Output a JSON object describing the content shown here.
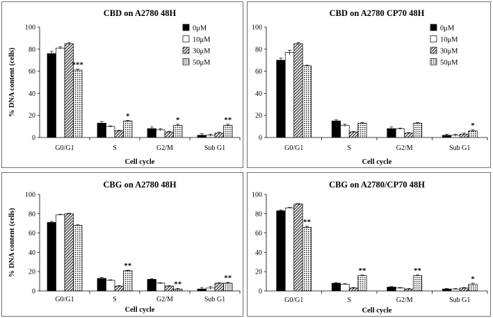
{
  "series_names": [
    "0μM",
    "10μM",
    "30μM",
    "50μM"
  ],
  "chart_data": [
    {
      "type": "bar",
      "title": "CBD on A2780 48H",
      "xlabel": "Cell cycle",
      "ylabel": "% DNA content (cells)",
      "ylim": [
        0,
        100
      ],
      "yticks": [
        0,
        20,
        40,
        60,
        80,
        100
      ],
      "categories": [
        "G0/G1",
        "S",
        "G2/M",
        "Sub G1"
      ],
      "series": [
        {
          "name": "0μM",
          "values": [
            76,
            13,
            8,
            2
          ],
          "errors": [
            2,
            1.5,
            1.5,
            1.5
          ]
        },
        {
          "name": "10μM",
          "values": [
            81,
            10,
            7,
            2
          ],
          "errors": [
            1,
            0.5,
            1,
            1
          ]
        },
        {
          "name": "30μM",
          "values": [
            85,
            6,
            5,
            4
          ],
          "errors": [
            1,
            0.5,
            0.5,
            1
          ]
        },
        {
          "name": "50μM",
          "values": [
            61,
            15,
            11,
            11
          ],
          "errors": [
            1,
            0.5,
            1,
            1
          ]
        }
      ],
      "annotations": [
        "***",
        "*",
        "*",
        "**"
      ],
      "legend": "top-right",
      "grid": false
    },
    {
      "type": "bar",
      "title": "CBD on A2780 CP70 48H",
      "xlabel": "Cell cycle",
      "ylabel": "",
      "ylim": [
        0,
        100
      ],
      "yticks": [
        0,
        20,
        40,
        60,
        80,
        100
      ],
      "categories": [
        "G0/G1",
        "S",
        "G2/M",
        "Sub G1"
      ],
      "series": [
        {
          "name": "0μM",
          "values": [
            70,
            15,
            8,
            2
          ],
          "errors": [
            2,
            1,
            1.5,
            1
          ]
        },
        {
          "name": "10μM",
          "values": [
            77,
            11,
            8,
            2
          ],
          "errors": [
            2,
            1,
            0.5,
            1
          ]
        },
        {
          "name": "30μM",
          "values": [
            85,
            5,
            4,
            3
          ],
          "errors": [
            1,
            0.5,
            0.5,
            1
          ]
        },
        {
          "name": "50μM",
          "values": [
            65,
            13,
            13,
            6
          ],
          "errors": [
            0.5,
            0.5,
            0.5,
            1
          ]
        }
      ],
      "annotations": [
        "",
        "",
        "",
        "*"
      ],
      "legend": "top-right",
      "grid": false
    },
    {
      "type": "bar",
      "title": "CBG on A2780 48H",
      "xlabel": "Cell cycle",
      "ylabel": "% DNA content (cells)",
      "ylim": [
        0,
        100
      ],
      "yticks": [
        0,
        20,
        40,
        60,
        80,
        100
      ],
      "categories": [
        "G0/G1",
        "S",
        "G2/M",
        "Sub G1"
      ],
      "series": [
        {
          "name": "0μM",
          "values": [
            71,
            13,
            12,
            2
          ],
          "errors": [
            1,
            1,
            0.5,
            1.5
          ]
        },
        {
          "name": "10μM",
          "values": [
            79,
            11,
            8,
            3
          ],
          "errors": [
            0.5,
            0.5,
            0.5,
            1.5
          ]
        },
        {
          "name": "30μM",
          "values": [
            80,
            5,
            5,
            8
          ],
          "errors": [
            0.5,
            0.5,
            0.5,
            0.5
          ]
        },
        {
          "name": "50μM",
          "values": [
            68,
            21,
            2,
            8
          ],
          "errors": [
            0.5,
            0.5,
            0.5,
            1
          ]
        }
      ],
      "annotations": [
        "",
        "**",
        "**",
        "**"
      ],
      "legend": "none",
      "grid": false
    },
    {
      "type": "bar",
      "title": "CBG on A2780/CP70 48H",
      "xlabel": "Cell cycle",
      "ylabel": "",
      "ylim": [
        0,
        100
      ],
      "yticks": [
        0,
        20,
        40,
        60,
        80,
        100
      ],
      "categories": [
        "G0/G1",
        "S",
        "G2/M",
        "Sub G1"
      ],
      "series": [
        {
          "name": "0μM",
          "values": [
            83,
            8,
            4,
            2
          ],
          "errors": [
            1,
            0.5,
            0.5,
            0.5
          ]
        },
        {
          "name": "10μM",
          "values": [
            86,
            7,
            3,
            2
          ],
          "errors": [
            0.5,
            0.5,
            0.5,
            0.5
          ]
        },
        {
          "name": "30μM",
          "values": [
            90,
            3,
            2,
            3
          ],
          "errors": [
            0.5,
            0.5,
            0.5,
            0.5
          ]
        },
        {
          "name": "50μM",
          "values": [
            66,
            16,
            16,
            7
          ],
          "errors": [
            1,
            0.5,
            0.5,
            1
          ]
        }
      ],
      "annotations": [
        "**",
        "**",
        "**",
        "*"
      ],
      "legend": "none",
      "grid": false
    }
  ]
}
